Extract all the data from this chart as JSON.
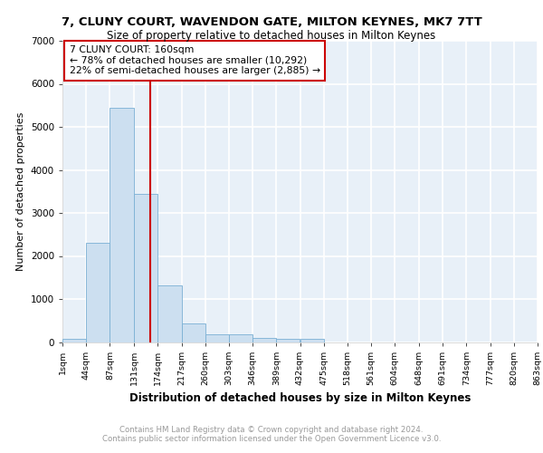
{
  "title": "7, CLUNY COURT, WAVENDON GATE, MILTON KEYNES, MK7 7TT",
  "subtitle": "Size of property relative to detached houses in Milton Keynes",
  "xlabel": "Distribution of detached houses by size in Milton Keynes",
  "ylabel": "Number of detached properties",
  "footer_line1": "Contains HM Land Registry data © Crown copyright and database right 2024.",
  "footer_line2": "Contains public sector information licensed under the Open Government Licence v3.0.",
  "bar_color": "#ccdff0",
  "bar_edge_color": "#7ab0d4",
  "background_color": "#e8f0f8",
  "grid_color": "#ffffff",
  "vline_x": 160,
  "vline_color": "#cc0000",
  "annotation_text": "7 CLUNY COURT: 160sqm\n← 78% of detached houses are smaller (10,292)\n22% of semi-detached houses are larger (2,885) →",
  "annotation_box_color": "#cc0000",
  "bin_edges": [
    1,
    44,
    87,
    131,
    174,
    217,
    260,
    303,
    346,
    389,
    432,
    475,
    518,
    561,
    604,
    648,
    691,
    734,
    777,
    820,
    863
  ],
  "bin_values": [
    80,
    2300,
    5450,
    3450,
    1320,
    440,
    175,
    175,
    90,
    65,
    65,
    0,
    0,
    0,
    0,
    0,
    0,
    0,
    0,
    0
  ],
  "ylim": [
    0,
    7000
  ],
  "yticks": [
    0,
    1000,
    2000,
    3000,
    4000,
    5000,
    6000,
    7000
  ],
  "tick_labels": [
    "1sqm",
    "44sqm",
    "87sqm",
    "131sqm",
    "174sqm",
    "217sqm",
    "260sqm",
    "303sqm",
    "346sqm",
    "389sqm",
    "432sqm",
    "475sqm",
    "518sqm",
    "561sqm",
    "604sqm",
    "648sqm",
    "691sqm",
    "734sqm",
    "777sqm",
    "820sqm",
    "863sqm"
  ]
}
